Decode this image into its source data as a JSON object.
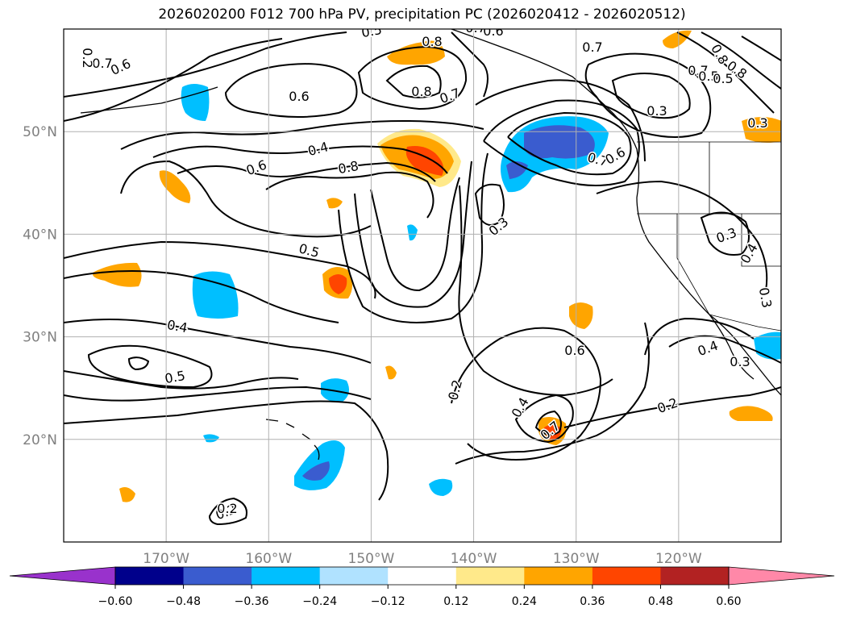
{
  "title": "2026020200 F012 700 hPa PV, precipitation PC (2026020412 - 2026020512)",
  "map": {
    "region": "North Pacific / western North America",
    "lon_range": [
      -180,
      -110
    ],
    "lat_range": [
      10,
      60
    ],
    "lon_labels": [
      "170°W",
      "160°W",
      "150°W",
      "140°W",
      "130°W",
      "120°W"
    ],
    "lat_labels": [
      "50°N",
      "40°N",
      "30°N",
      "20°N"
    ],
    "grid": true
  },
  "pv_contour_labels": [
    "0.5",
    "0.6",
    "0.7",
    "0.8",
    "0.8",
    "0.7",
    "0.6",
    "0.4",
    "0.6",
    "0.8",
    "0.5",
    "0.4",
    "0.5",
    "0.2",
    "0.2",
    "0.3",
    "0.4",
    "0.2",
    "0.7",
    "0.6",
    "0.3",
    "0.3",
    "0.4",
    "0.3",
    "0.4",
    "0.3",
    "0.2",
    "0.2",
    "0.8",
    "0.7",
    "0.5",
    "0.5",
    "0.8",
    "0.6",
    "0.7",
    "0.6",
    "0.7",
    "0.7",
    "0.3"
  ],
  "colorbar": {
    "ticks": [
      "−0.60",
      "−0.48",
      "−0.36",
      "−0.24",
      "−0.12",
      "0.12",
      "0.24",
      "0.36",
      "0.48",
      "0.60"
    ],
    "colors": [
      "#9932cc",
      "#00008b",
      "#3a5ccf",
      "#00bfff",
      "#b0e2ff",
      "#ffffff",
      "#ffe98a",
      "#ffa500",
      "#ff4500",
      "#b22222",
      "#ff88a8"
    ],
    "extend": "both"
  }
}
